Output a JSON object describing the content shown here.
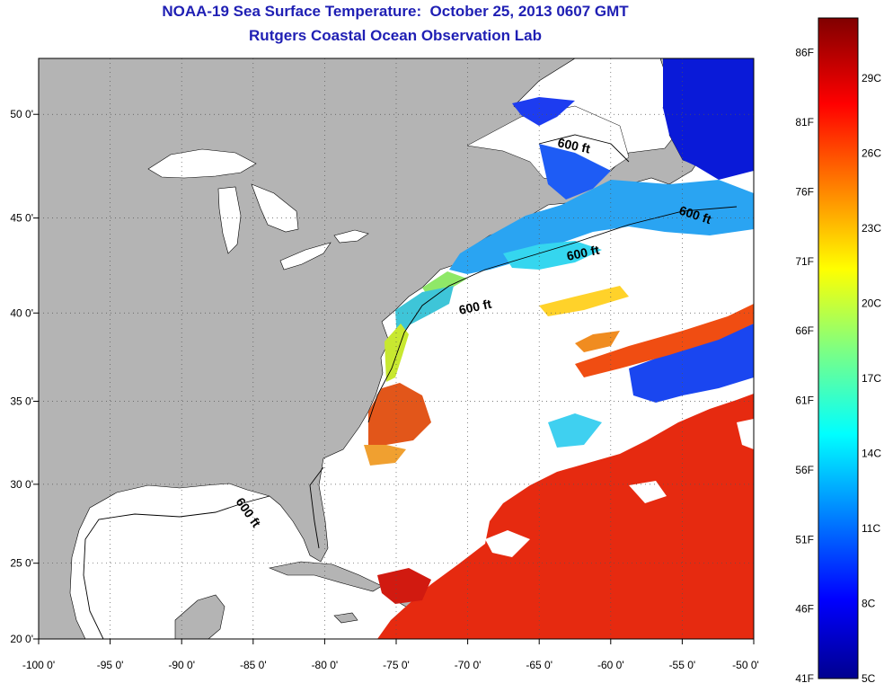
{
  "title": {
    "line1": "NOAA-19 Sea Surface Temperature:  October 25, 2013 0607 GMT",
    "line2": "Rutgers Coastal Ocean Observation Lab"
  },
  "map": {
    "lon_range": [
      -100,
      -50
    ],
    "lat_range": [
      20,
      52.5
    ],
    "x_ticks": [
      "-100 0'",
      "-95 0'",
      "-90 0'",
      "-85 0'",
      "-80 0'",
      "-75 0'",
      "-70 0'",
      "-65 0'",
      "-60 0'",
      "-55 0'",
      "-50 0'"
    ],
    "y_ticks": [
      "50 0'",
      "45 0'",
      "40 0'",
      "35 0'",
      "30 0'",
      "25 0'",
      "20 0'"
    ],
    "contour_labels": [
      "600 ft",
      "600 ft",
      "600 ft",
      "600 ft",
      "600 ft"
    ],
    "land_color": "#b4b4b4",
    "no_data_color": "#ffffff"
  },
  "colorbar": {
    "fahrenheit": [
      "86F",
      "81F",
      "76F",
      "71F",
      "66F",
      "61F",
      "56F",
      "51F",
      "46F",
      "41F"
    ],
    "celsius": [
      "29C",
      "26C",
      "23C",
      "20C",
      "17C",
      "14C",
      "11C",
      "8C",
      "5C"
    ],
    "colormap": "jet"
  }
}
